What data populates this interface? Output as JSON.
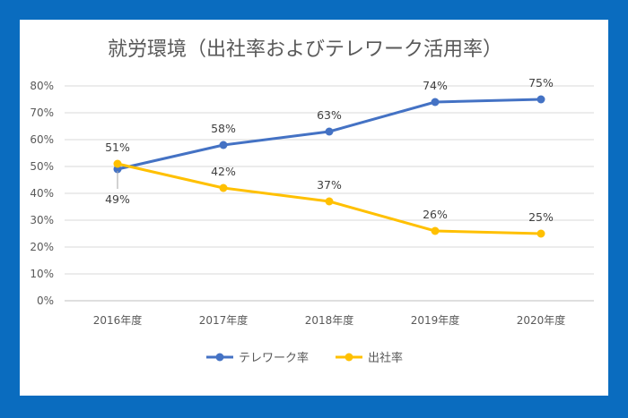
{
  "chart_data": {
    "type": "line",
    "title": "就労環境（出社率およびテレワーク活用率）",
    "categories": [
      "2016年度",
      "2017年度",
      "2018年度",
      "2019年度",
      "2020年度"
    ],
    "ylim": [
      0,
      80
    ],
    "yticks": [
      0,
      10,
      20,
      30,
      40,
      50,
      60,
      70,
      80
    ],
    "ytick_labels": [
      "0%",
      "10%",
      "20%",
      "30%",
      "40%",
      "50%",
      "60%",
      "70%",
      "80%"
    ],
    "grid": true,
    "legend_position": "bottom",
    "series": [
      {
        "name": "テレワーク率",
        "color": "#4472c4",
        "values": [
          49,
          58,
          63,
          74,
          75
        ],
        "labels": [
          "49%",
          "58%",
          "63%",
          "74%",
          "75%"
        ],
        "label_pos": [
          "below",
          "above",
          "above",
          "above",
          "above"
        ]
      },
      {
        "name": "出社率",
        "color": "#ffc000",
        "values": [
          51,
          42,
          37,
          26,
          25
        ],
        "labels": [
          "51%",
          "42%",
          "37%",
          "26%",
          "25%"
        ],
        "label_pos": [
          "above",
          "above",
          "above",
          "above",
          "above"
        ]
      }
    ]
  }
}
